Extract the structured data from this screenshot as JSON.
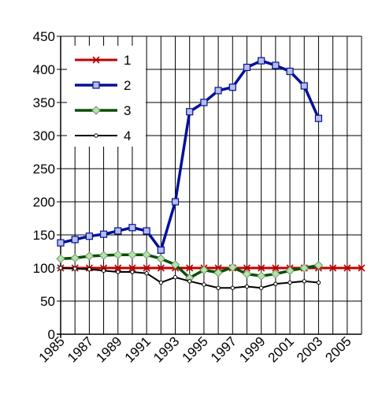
{
  "chart_data": {
    "type": "line",
    "title": "",
    "xlabel": "",
    "ylabel": "",
    "x": [
      1985,
      1986,
      1987,
      1988,
      1989,
      1990,
      1991,
      1992,
      1993,
      1994,
      1995,
      1996,
      1997,
      1998,
      1999,
      2000,
      2001,
      2002,
      2003,
      2004,
      2005,
      2006
    ],
    "xlim": [
      1985,
      2006
    ],
    "ylim": [
      0,
      450
    ],
    "x_ticks": [
      "1985",
      "1987",
      "1989",
      "1991",
      "1993",
      "1995",
      "1997",
      "1999",
      "2001",
      "2003",
      "2005"
    ],
    "y_ticks": [
      "0",
      "50",
      "100",
      "150",
      "200",
      "250",
      "300",
      "350",
      "400",
      "450"
    ],
    "grid": true,
    "legend_position": "top-left",
    "series": [
      {
        "name": "1",
        "color": "#c00000",
        "marker": "x",
        "values": [
          100,
          100,
          100,
          100,
          100,
          100,
          100,
          100,
          100,
          100,
          100,
          100,
          100,
          100,
          100,
          100,
          100,
          100,
          100,
          100,
          100,
          100
        ]
      },
      {
        "name": "2",
        "color": "#00109a",
        "marker": "square",
        "values": [
          138,
          143,
          148,
          151,
          156,
          161,
          156,
          127,
          200,
          336,
          350,
          368,
          373,
          403,
          413,
          406,
          397,
          375,
          326,
          null,
          null,
          null
        ]
      },
      {
        "name": "3",
        "color": "#0a4d0a",
        "marker": "diamond",
        "values": [
          114,
          115,
          118,
          119,
          120,
          120,
          120,
          114,
          105,
          85,
          97,
          93,
          101,
          91,
          88,
          91,
          96,
          100,
          104,
          null,
          null,
          null
        ]
      },
      {
        "name": "4",
        "color": "#000000",
        "marker": "dot",
        "values": [
          100,
          99,
          98,
          96,
          94,
          94,
          92,
          78,
          86,
          80,
          75,
          70,
          70,
          72,
          70,
          76,
          78,
          80,
          78,
          null,
          null,
          null
        ]
      }
    ]
  }
}
